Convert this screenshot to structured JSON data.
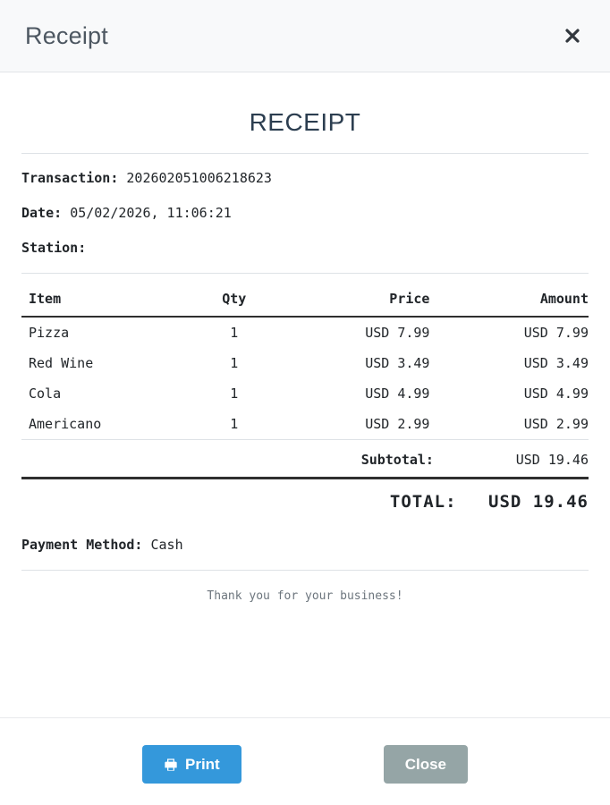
{
  "modal": {
    "title": "Receipt",
    "icons": {
      "close": "x-mark",
      "print": "printer"
    }
  },
  "receipt": {
    "heading": "RECEIPT",
    "transaction_label": "Transaction:",
    "transaction_value": "202602051006218623",
    "date_label": "Date:",
    "date_value": "05/02/2026, 11:06:21",
    "station_label": "Station:",
    "station_value": "",
    "table": {
      "headers": [
        "Item",
        "Qty",
        "Price",
        "Amount"
      ],
      "rows": [
        {
          "item": "Pizza",
          "qty": "1",
          "price": "USD 7.99",
          "amount": "USD 7.99"
        },
        {
          "item": "Red Wine",
          "qty": "1",
          "price": "USD 3.49",
          "amount": "USD 3.49"
        },
        {
          "item": "Cola",
          "qty": "1",
          "price": "USD 4.99",
          "amount": "USD 4.99"
        },
        {
          "item": "Americano",
          "qty": "1",
          "price": "USD 2.99",
          "amount": "USD 2.99"
        }
      ]
    },
    "subtotal_label": "Subtotal:",
    "subtotal_value": "USD 19.46",
    "total_label": "TOTAL:",
    "total_value": "USD 19.46",
    "payment_label": "Payment Method:",
    "payment_value": "Cash",
    "footer_note": "Thank you for your business!"
  },
  "footer": {
    "print_label": "Print",
    "close_label": "Close"
  },
  "colors": {
    "accent_blue": "#3498db",
    "close_gray": "#95a5a6",
    "heading_navy": "#2c3e50",
    "header_bg": "#f8f9fa",
    "divider_dark": "#2f2f2f",
    "divider_light": "#dee2e6"
  }
}
